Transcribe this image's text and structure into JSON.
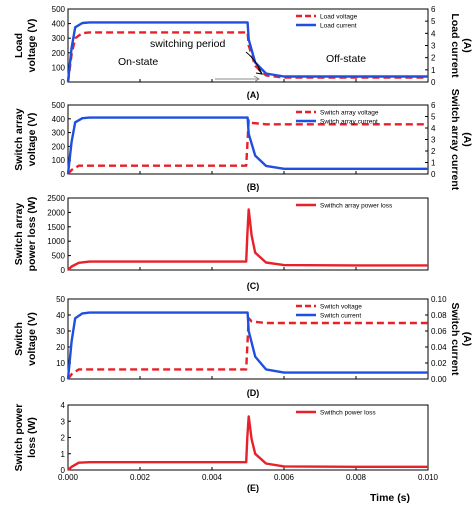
{
  "chart_data": [
    {
      "panel": "(A)",
      "type": "line",
      "ylabel": "Load voltage (V)",
      "ylabel2": "Load current (A)",
      "ylim": [
        0,
        500
      ],
      "yticks": [
        0,
        100,
        200,
        300,
        400,
        500
      ],
      "ylim2": [
        0,
        6
      ],
      "yticks2": [
        0,
        1,
        2,
        3,
        4,
        5,
        6
      ],
      "series": [
        {
          "name": "Load voltage",
          "axis": "left",
          "style": "dashed",
          "color": "#e8202a",
          "x": [
            0,
            0.0001,
            0.0002,
            0.0004,
            0.0006,
            0.001,
            0.002,
            0.004,
            0.00499,
            0.00502,
            0.0052,
            0.0055,
            0.006,
            0.008,
            0.01
          ],
          "y": [
            0,
            190,
            300,
            335,
            340,
            340,
            340,
            340,
            340,
            250,
            110,
            45,
            30,
            30,
            30
          ]
        },
        {
          "name": "Load current",
          "axis": "right",
          "style": "solid",
          "color": "#1f4fe0",
          "x": [
            0,
            0.0001,
            0.0002,
            0.0004,
            0.0006,
            0.001,
            0.002,
            0.004,
            0.00499,
            0.00502,
            0.0052,
            0.0055,
            0.006,
            0.008,
            0.01
          ],
          "y": [
            0,
            2.8,
            4.5,
            4.85,
            4.9,
            4.9,
            4.9,
            4.9,
            4.9,
            3.5,
            1.6,
            0.7,
            0.45,
            0.45,
            0.45
          ]
        }
      ],
      "annotations": [
        "On-state",
        "switching period",
        "Off-state"
      ]
    },
    {
      "panel": "(B)",
      "type": "line",
      "ylabel": "Switch array voltage (V)",
      "ylabel2": "Switch array current (A)",
      "ylim": [
        0,
        500
      ],
      "yticks": [
        0,
        100,
        200,
        300,
        400,
        500
      ],
      "ylim2": [
        0,
        6
      ],
      "yticks2": [
        0,
        1,
        2,
        3,
        4,
        5,
        6
      ],
      "series": [
        {
          "name": "Switch array voltage",
          "axis": "left",
          "style": "dashed",
          "color": "#e8202a",
          "x": [
            0,
            0.0001,
            0.0003,
            0.001,
            0.004,
            0.00495,
            0.0049501,
            0.00502,
            0.0051,
            0.0055,
            0.006,
            0.008,
            0.01
          ],
          "y": [
            0,
            30,
            60,
            60,
            60,
            60,
            60,
            390,
            370,
            360,
            360,
            360,
            360
          ]
        },
        {
          "name": "Switch array current",
          "axis": "right",
          "style": "solid",
          "color": "#1f4fe0",
          "x": [
            0,
            0.0001,
            0.0002,
            0.0004,
            0.0006,
            0.001,
            0.002,
            0.004,
            0.00499,
            0.00502,
            0.0052,
            0.0055,
            0.006,
            0.008,
            0.01
          ],
          "y": [
            0,
            2.8,
            4.5,
            4.85,
            4.9,
            4.9,
            4.9,
            4.9,
            4.9,
            3.5,
            1.6,
            0.7,
            0.45,
            0.45,
            0.45
          ]
        }
      ]
    },
    {
      "panel": "(C)",
      "type": "line",
      "ylabel": "Switch array power loss (W)",
      "ylim": [
        0,
        2500
      ],
      "yticks": [
        0,
        500,
        1000,
        1500,
        2000,
        2500
      ],
      "series": [
        {
          "name": "Swithch array power loss",
          "axis": "left",
          "style": "solid",
          "color": "#e8202a",
          "x": [
            0,
            0.0001,
            0.0003,
            0.0006,
            0.001,
            0.004,
            0.00495,
            0.00498,
            0.00502,
            0.0051,
            0.0052,
            0.0055,
            0.006,
            0.008,
            0.01
          ],
          "y": [
            0,
            120,
            250,
            290,
            290,
            290,
            290,
            1200,
            2100,
            1200,
            600,
            260,
            170,
            160,
            160
          ]
        }
      ]
    },
    {
      "panel": "(D)",
      "type": "line",
      "ylabel": "Switch voltage (V)",
      "ylabel2": "Switch current (A)",
      "ylim": [
        0,
        50
      ],
      "yticks": [
        0,
        10,
        20,
        30,
        40,
        50
      ],
      "ylim2": [
        0,
        0.1
      ],
      "yticks2": [
        0.0,
        0.02,
        0.04,
        0.06,
        0.08,
        0.1
      ],
      "series": [
        {
          "name": "Switch voltage",
          "axis": "left",
          "style": "dashed",
          "color": "#e8202a",
          "x": [
            0,
            0.0001,
            0.0003,
            0.001,
            0.004,
            0.00495,
            0.0049501,
            0.00502,
            0.0051,
            0.0055,
            0.006,
            0.008,
            0.01
          ],
          "y": [
            0,
            3,
            6,
            6,
            6,
            6,
            6,
            38,
            36,
            35,
            35,
            35,
            35
          ]
        },
        {
          "name": "Switch current",
          "axis": "right",
          "style": "solid",
          "color": "#1f4fe0",
          "x": [
            0,
            0.0001,
            0.0002,
            0.0004,
            0.0006,
            0.001,
            0.002,
            0.004,
            0.00499,
            0.00502,
            0.0052,
            0.0055,
            0.006,
            0.008,
            0.01
          ],
          "y": [
            0,
            0.047,
            0.076,
            0.082,
            0.083,
            0.083,
            0.083,
            0.083,
            0.083,
            0.06,
            0.028,
            0.012,
            0.008,
            0.008,
            0.008
          ]
        }
      ]
    },
    {
      "panel": "(E)",
      "type": "line",
      "ylabel": "Switch power loss (W)",
      "xlabel": "Time (s)",
      "ylim": [
        0,
        4
      ],
      "yticks": [
        0,
        1,
        2,
        3,
        4
      ],
      "xlim": [
        0,
        0.01
      ],
      "xticks": [
        "0.000",
        "0.002",
        "0.004",
        "0.006",
        "0.008",
        "0.010"
      ],
      "series": [
        {
          "name": "Swithch power loss",
          "axis": "left",
          "style": "solid",
          "color": "#e8202a",
          "x": [
            0,
            0.0001,
            0.0003,
            0.0006,
            0.001,
            0.004,
            0.00495,
            0.00498,
            0.00502,
            0.0051,
            0.0052,
            0.0055,
            0.006,
            0.008,
            0.01
          ],
          "y": [
            0,
            0.2,
            0.45,
            0.48,
            0.48,
            0.48,
            0.48,
            2.0,
            3.3,
            1.9,
            1.0,
            0.4,
            0.22,
            0.2,
            0.2
          ]
        }
      ]
    }
  ]
}
